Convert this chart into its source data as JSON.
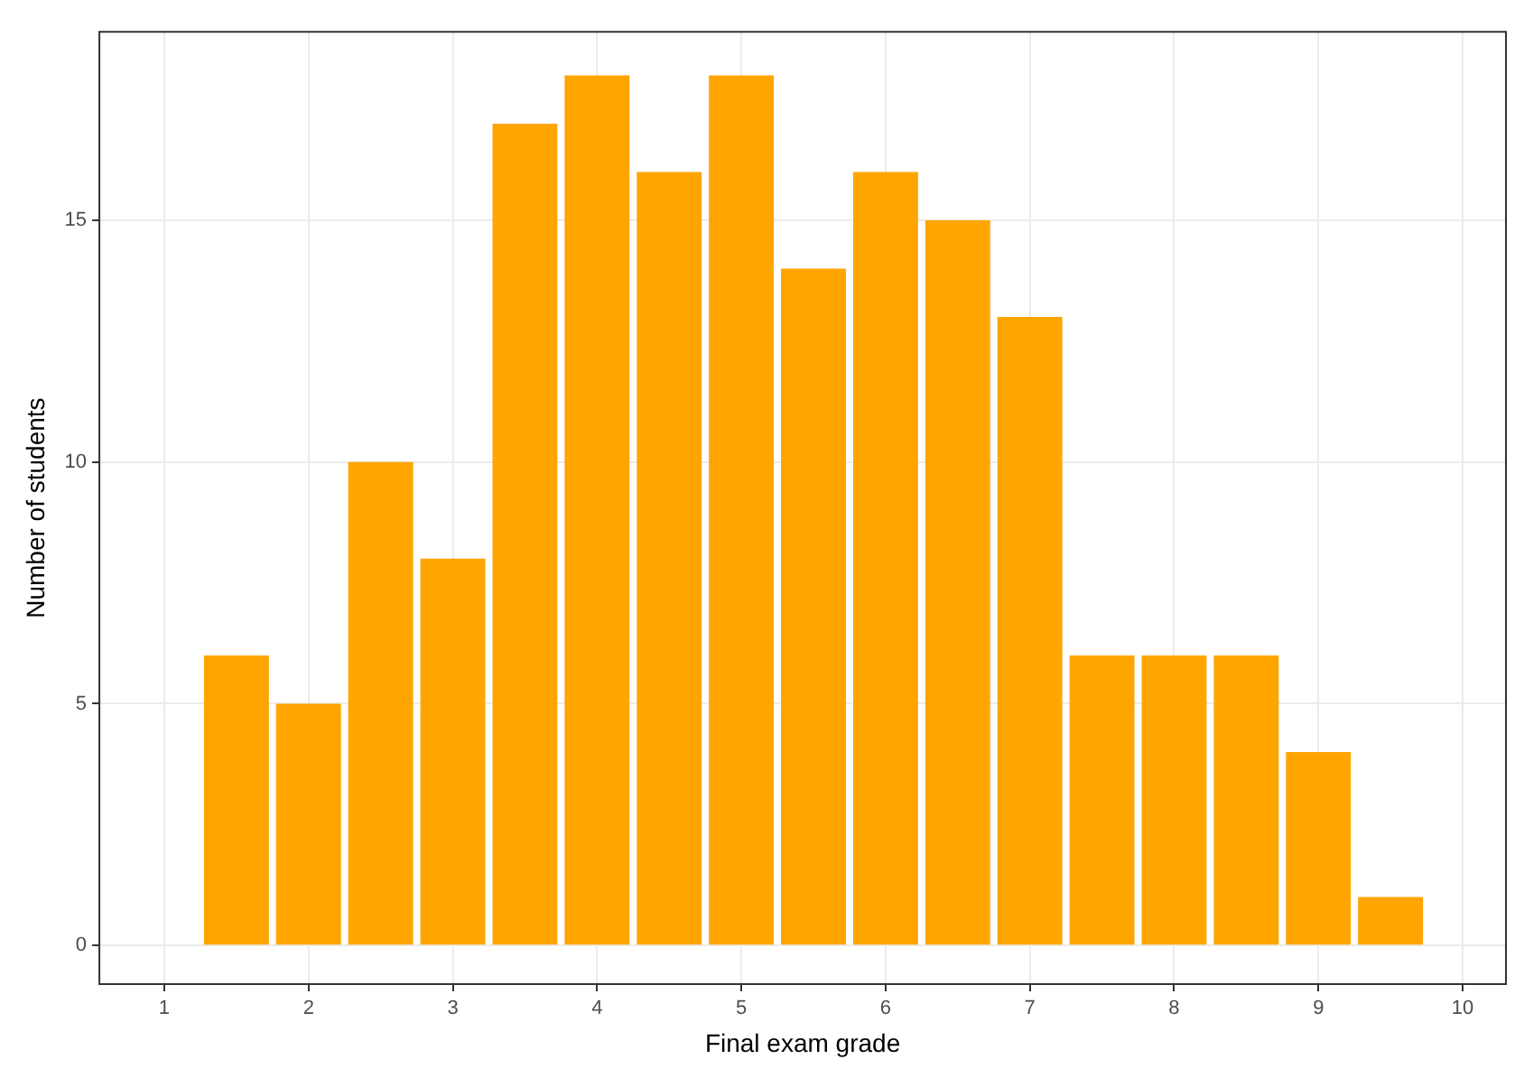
{
  "chart_data": {
    "type": "bar",
    "xlabel": "Final exam grade",
    "ylabel": "Number of students",
    "x": [
      1.5,
      2,
      2.5,
      3,
      3.5,
      4,
      4.5,
      5,
      5.5,
      6,
      6.5,
      7,
      7.5,
      8,
      8.5,
      9,
      9.5
    ],
    "values": [
      6,
      5,
      10,
      8,
      17,
      18,
      16,
      18,
      14,
      16,
      15,
      13,
      6,
      6,
      6,
      4,
      1
    ],
    "color": "#ffa500",
    "xlim": [
      0.55,
      10.3
    ],
    "xticks": [
      1,
      2,
      3,
      4,
      5,
      6,
      7,
      8,
      9,
      10
    ],
    "ylim": [
      -0.8,
      18.9
    ],
    "yticks": [
      0,
      5,
      10,
      15
    ],
    "grid": true,
    "legend": false
  }
}
